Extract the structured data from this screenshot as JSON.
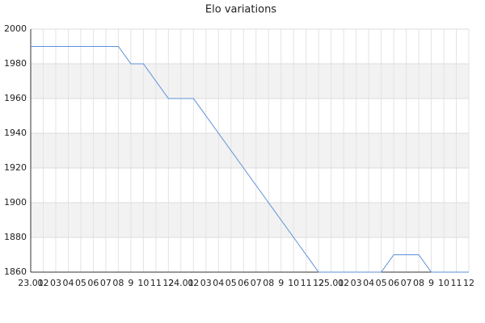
{
  "chart_data": {
    "type": "line",
    "title": "Elo variations",
    "categories": [
      "23.01",
      "02",
      "03",
      "04",
      "05",
      "06",
      "07",
      "08",
      "9",
      "10",
      "11",
      "12",
      "24.01",
      "02",
      "03",
      "04",
      "05",
      "06",
      "07",
      "08",
      "9",
      "10",
      "11",
      "12",
      "25.01",
      "02",
      "03",
      "04",
      "05",
      "06",
      "07",
      "08",
      "9",
      "10",
      "11",
      "12"
    ],
    "values": [
      1990,
      1990,
      1990,
      1990,
      1990,
      1990,
      1990,
      1990,
      1980,
      1980,
      1970,
      1960,
      1960,
      1960,
      1950,
      1940,
      1930,
      1920,
      1910,
      1900,
      1890,
      1880,
      1870,
      1860,
      1860,
      1860,
      1860,
      1860,
      1860,
      1870,
      1870,
      1870,
      1860,
      1860,
      1860,
      1860
    ],
    "color": "#5b8fd9",
    "ylim": [
      1860,
      2000
    ],
    "yticks": [
      1860,
      1880,
      1900,
      1920,
      1940,
      1960,
      1980,
      2000
    ],
    "grid": true,
    "grid_band_color": "#f2f2f2"
  }
}
